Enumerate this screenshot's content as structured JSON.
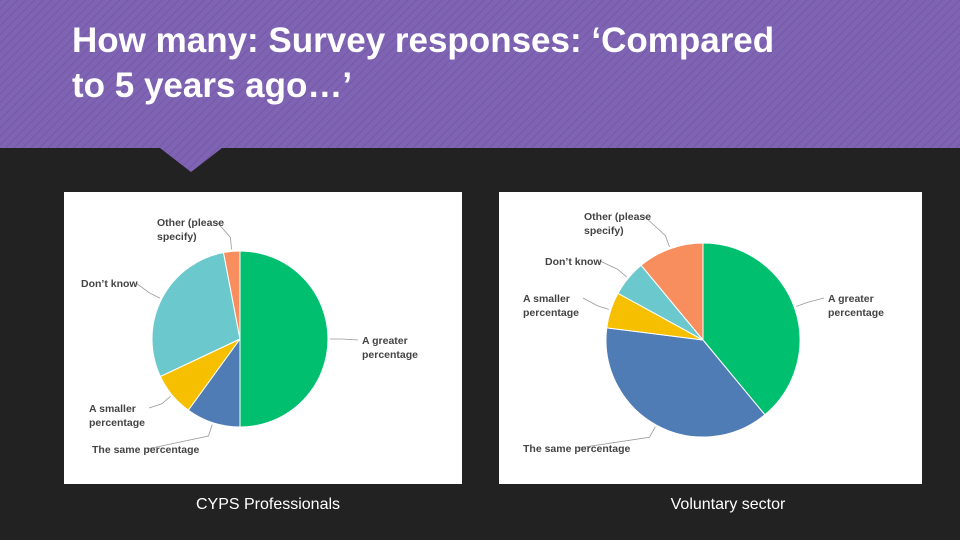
{
  "title": "How many: Survey responses: ‘Compared to 5 years ago…’",
  "chart_data": [
    {
      "type": "pie",
      "caption": "CYPS Professionals",
      "categories": [
        "A greater percentage",
        "The same percentage",
        "A smaller percentage",
        "Don’t know",
        "Other (please specify)"
      ],
      "values": [
        50,
        10,
        8,
        29,
        3
      ],
      "colors": [
        "#00bf6f",
        "#507cb6",
        "#f6c000",
        "#6bc8cd",
        "#f88e5e"
      ]
    },
    {
      "type": "pie",
      "caption": "Voluntary sector",
      "categories": [
        "A greater percentage",
        "The same percentage",
        "A smaller percentage",
        "Don’t know",
        "Other (please specify)"
      ],
      "values": [
        39,
        38,
        6,
        6,
        11
      ],
      "colors": [
        "#00bf6f",
        "#507cb6",
        "#f6c000",
        "#6bc8cd",
        "#f88e5e"
      ]
    }
  ]
}
